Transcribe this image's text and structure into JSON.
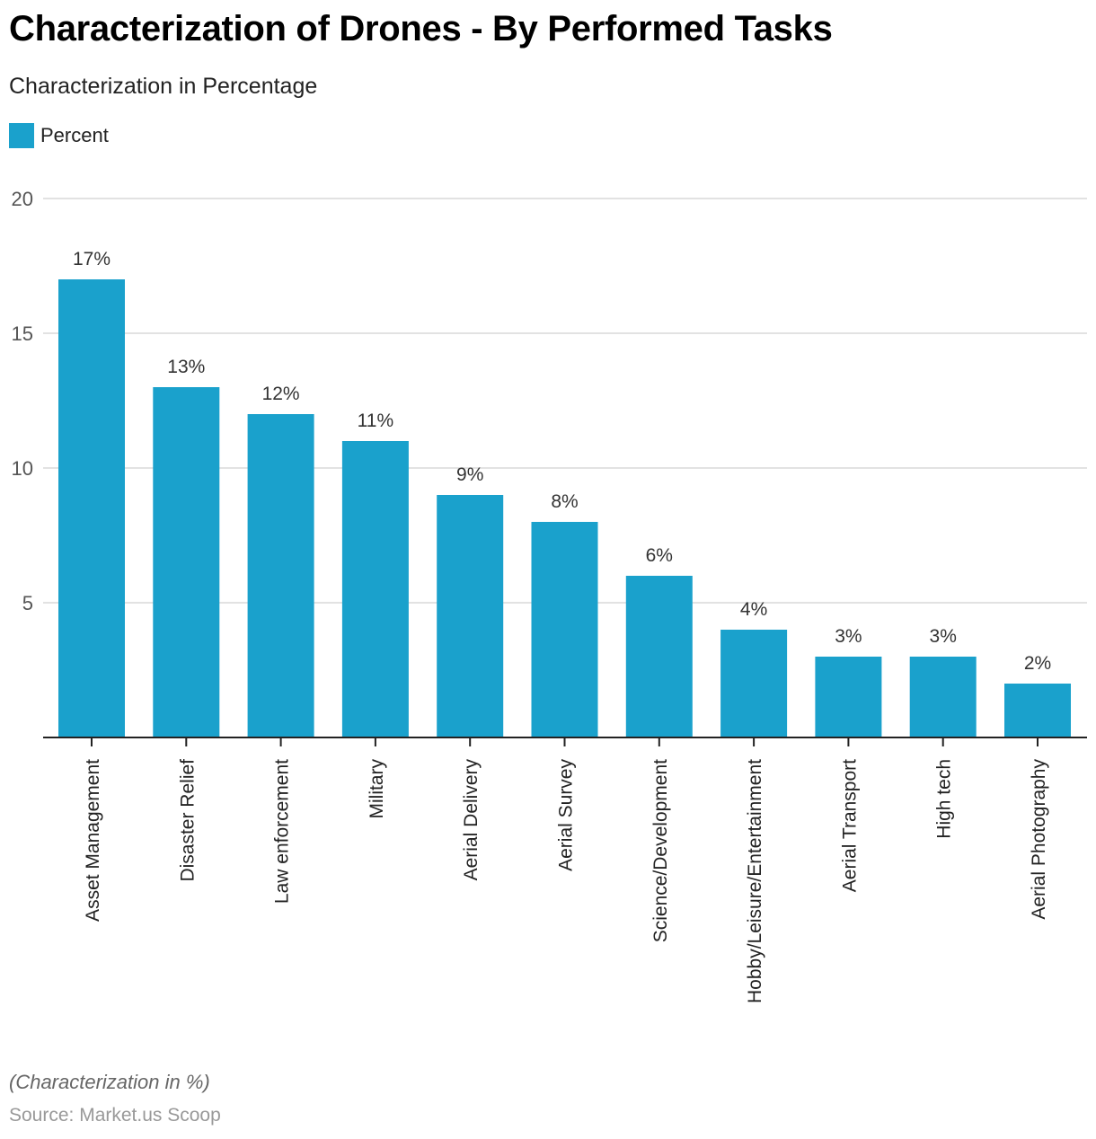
{
  "header": {
    "title": "Characterization of Drones - By Performed Tasks",
    "subtitle": "Characterization in Percentage"
  },
  "legend": {
    "items": [
      {
        "label": "Percent",
        "color": "#1aa1cc"
      }
    ]
  },
  "footer": {
    "note": "(Characterization in %)",
    "source": "Source: Market.us Scoop"
  },
  "chart_data": {
    "type": "bar",
    "title": "Characterization of Drones - By Performed Tasks",
    "subtitle": "Characterization in Percentage",
    "xlabel": "",
    "ylabel": "",
    "ylim": [
      0,
      20
    ],
    "yticks": [
      5,
      10,
      15,
      20
    ],
    "grid": true,
    "legend_position": "top-left",
    "bar_color": "#1aa1cc",
    "categories": [
      "Asset Management",
      "Disaster Relief",
      "Law enforcement",
      "Military",
      "Aerial Delivery",
      "Aerial Survey",
      "Science/Development",
      "Hobby/Leisure/Entertainment",
      "Aerial Transport",
      "High tech",
      "Aerial Photography"
    ],
    "series": [
      {
        "name": "Percent",
        "values": [
          17,
          13,
          12,
          11,
          9,
          8,
          6,
          4,
          3,
          3,
          2
        ]
      }
    ],
    "data_labels": [
      "17%",
      "13%",
      "12%",
      "11%",
      "9%",
      "8%",
      "6%",
      "4%",
      "3%",
      "3%",
      "2%"
    ]
  }
}
